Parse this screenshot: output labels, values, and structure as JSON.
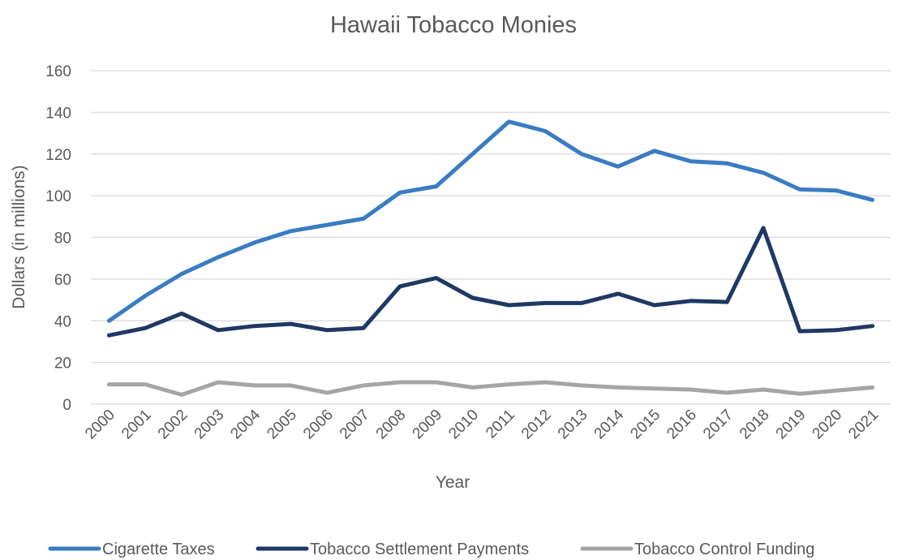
{
  "chart_data": {
    "type": "line",
    "title": "Hawaii Tobacco Monies",
    "xlabel": "Year",
    "ylabel": "Dollars (in millions)",
    "ylim": [
      0,
      160
    ],
    "yticks": [
      0,
      20,
      40,
      60,
      80,
      100,
      120,
      140,
      160
    ],
    "grid": true,
    "legend_position": "bottom",
    "categories": [
      "2000",
      "2001",
      "2002",
      "2003",
      "2004",
      "2005",
      "2006",
      "2007",
      "2008",
      "2009",
      "2010",
      "2011",
      "2012",
      "2013",
      "2014",
      "2015",
      "2016",
      "2017",
      "2018",
      "2019",
      "2020",
      "2021"
    ],
    "series": [
      {
        "name": "Cigarette Taxes",
        "color": "#3a7cc2",
        "values": [
          40,
          52,
          62.5,
          70.5,
          77.5,
          83,
          86,
          89,
          101.5,
          104.5,
          120,
          135.5,
          131,
          120,
          114,
          121.5,
          116.5,
          115.5,
          111,
          103,
          102.5,
          98
        ]
      },
      {
        "name": "Tobacco Settlement Payments",
        "color": "#1f3864",
        "values": [
          33,
          36.5,
          43.5,
          35.5,
          37.5,
          38.5,
          35.5,
          36.5,
          56.5,
          60.5,
          51,
          47.5,
          48.5,
          48.5,
          53,
          47.5,
          49.5,
          49,
          84.5,
          35,
          35.5,
          37.5
        ]
      },
      {
        "name": "Tobacco Control Funding",
        "color": "#a5a5a5",
        "values": [
          9.5,
          9.5,
          4.5,
          10.5,
          9,
          9,
          5.5,
          9,
          10.5,
          10.5,
          8,
          9.5,
          10.5,
          9,
          8,
          7.5,
          7,
          5.5,
          7,
          5,
          6.5,
          8
        ]
      }
    ]
  }
}
